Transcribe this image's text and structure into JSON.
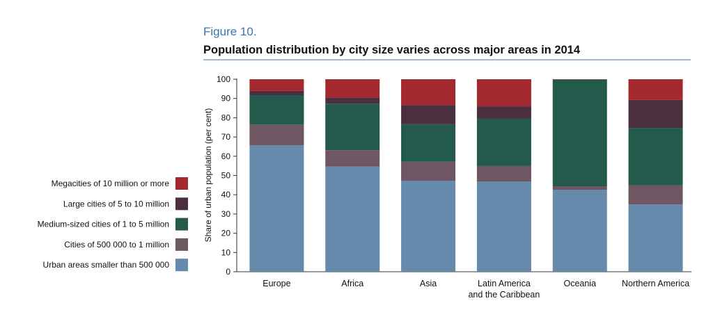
{
  "figure_label": "Figure 10.",
  "chart_data": {
    "type": "bar",
    "stacked": true,
    "title": "Population distribution by city size varies across major areas in 2014",
    "xlabel": "",
    "ylabel": "Share of urban population (per cent)",
    "ylim": [
      0,
      100
    ],
    "yticks": [
      0,
      10,
      20,
      30,
      40,
      50,
      60,
      70,
      80,
      90,
      100
    ],
    "grid": false,
    "legend_placement": "left",
    "categories": [
      [
        "Europe"
      ],
      [
        "Africa"
      ],
      [
        "Asia"
      ],
      [
        "Latin America",
        "and the Caribbean"
      ],
      [
        "Oceania"
      ],
      [
        "Northern America"
      ]
    ],
    "series": [
      {
        "name": "Urban areas smaller than 500 000",
        "color": "#668aab",
        "values": [
          65.6,
          54.6,
          47.3,
          46.8,
          42.6,
          35.0
        ]
      },
      {
        "name": "Cities of 500 000 to 1 million",
        "color": "#6e5762",
        "values": [
          10.8,
          8.5,
          9.8,
          8.1,
          1.8,
          9.9
        ]
      },
      {
        "name": "Medium-sized cities of 1 to 5 million",
        "color": "#245a4c",
        "values": [
          15.3,
          24.2,
          19.5,
          24.7,
          55.4,
          29.8
        ]
      },
      {
        "name": "Large cities of 5 to 10 million",
        "color": "#4a2f3f",
        "values": [
          2.2,
          3.2,
          10.0,
          6.3,
          0.0,
          14.5
        ]
      },
      {
        "name": "Megacities of 10 million or more",
        "color": "#a3292f",
        "values": [
          6.1,
          9.5,
          13.4,
          14.1,
          0.2,
          10.8
        ]
      }
    ]
  }
}
